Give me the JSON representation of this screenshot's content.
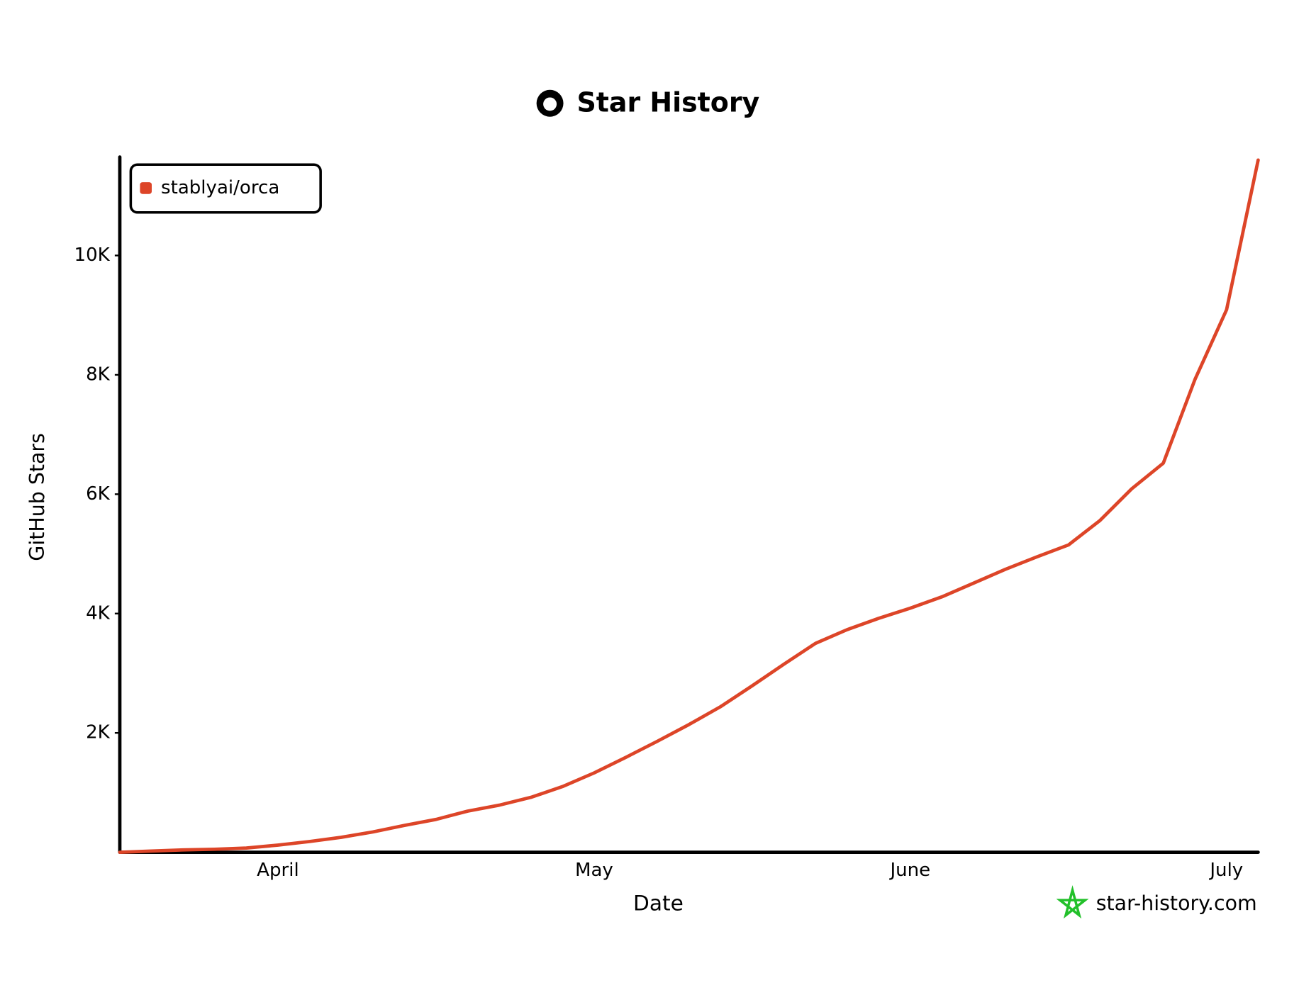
{
  "chart_data": {
    "type": "line",
    "title": "Star History",
    "x_label": "Date",
    "y_label": "GitHub Stars",
    "categories": [
      null,
      null,
      null,
      null,
      null,
      "April",
      null,
      null,
      null,
      null,
      null,
      null,
      null,
      null,
      null,
      "May",
      null,
      null,
      null,
      null,
      null,
      null,
      null,
      null,
      null,
      "June",
      null,
      null,
      null,
      null,
      null,
      null,
      null,
      null,
      null,
      "July",
      null
    ],
    "series": [
      {
        "name": "stablyai/orca",
        "color": "#dd4528",
        "values": [
          0,
          20,
          40,
          50,
          70,
          120,
          180,
          250,
          340,
          450,
          550,
          690,
          790,
          920,
          1100,
          1330,
          1590,
          1860,
          2140,
          2440,
          2790,
          3150,
          3500,
          3730,
          3920,
          4090,
          4280,
          4510,
          4740,
          4950,
          5150,
          5560,
          6090,
          6520,
          7920,
          9090,
          11600
        ]
      }
    ],
    "ylim": [
      0,
      11650
    ],
    "yticks": [
      {
        "value": 2000,
        "label": "2K"
      },
      {
        "value": 4000,
        "label": "4K"
      },
      {
        "value": 6000,
        "label": "6K"
      },
      {
        "value": 8000,
        "label": "8K"
      },
      {
        "value": 10000,
        "label": "10K"
      }
    ],
    "legend": "top-left",
    "grid": false
  },
  "watermark": "star-history.com"
}
